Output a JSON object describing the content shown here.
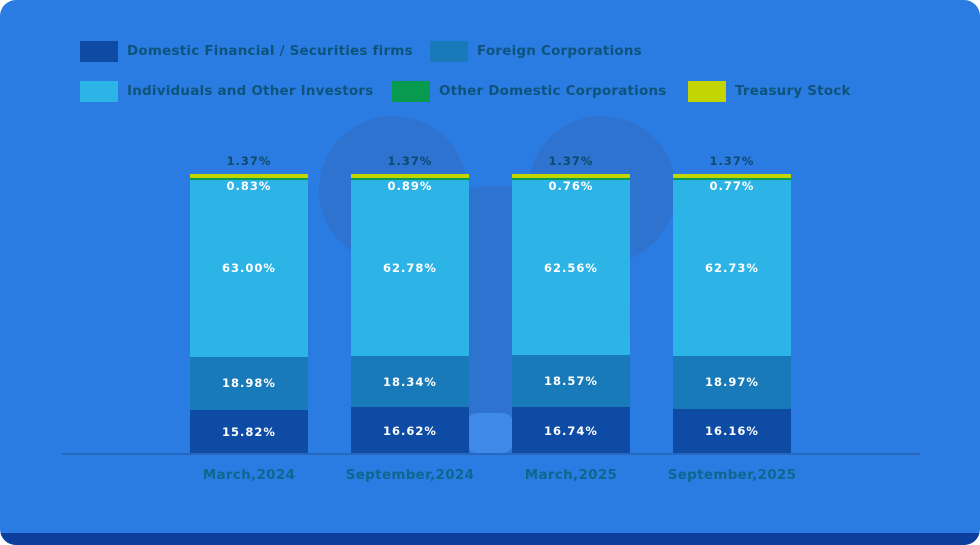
{
  "colors": {
    "background": "#2b7ce2",
    "watermark": "#2e73cf",
    "watermark_light_patch": "#3f8ae8",
    "axis_line": "#2767bd",
    "footer_bar": "#0c3f9c",
    "value_label": "#ffffff",
    "top_value_label": "#0d4a6e",
    "legend_text": "#0d547c",
    "category_text": "#0f6690"
  },
  "legend": [
    {
      "label": "Domestic Financial / Securities firms",
      "color": "#0d4ba5"
    },
    {
      "label": "Foreign Corporations",
      "color": "#187ab8"
    },
    {
      "label": "Individuals and Other Investors",
      "color": "#2db4e6"
    },
    {
      "label": "Other Domestic Corporations",
      "color": "#089a4e"
    },
    {
      "label": "Treasury Stock",
      "color": "#c2d500"
    }
  ],
  "chart_data": {
    "type": "bar",
    "stacked": true,
    "legend_position": "top",
    "grid": false,
    "ylim": [
      0,
      100
    ],
    "value_suffix": "%",
    "categories": [
      "March,2024",
      "September,2024",
      "March,2025",
      "September,2025"
    ],
    "series": [
      {
        "name": "Domestic Financial / Securities firms",
        "color": "#0d4ba5",
        "values": [
          15.82,
          16.62,
          16.74,
          16.16
        ]
      },
      {
        "name": "Foreign Corporations",
        "color": "#187ab8",
        "values": [
          18.98,
          18.34,
          18.57,
          18.97
        ]
      },
      {
        "name": "Individuals and Other Investors",
        "color": "#2db4e6",
        "values": [
          63.0,
          62.78,
          62.56,
          62.73
        ]
      },
      {
        "name": "Other Domestic Corporations",
        "color": "#089a4e",
        "values": [
          0.83,
          0.89,
          0.76,
          0.77
        ]
      },
      {
        "name": "Treasury Stock",
        "color": "#c2d500",
        "values": [
          1.37,
          1.37,
          1.37,
          1.37
        ]
      }
    ]
  }
}
